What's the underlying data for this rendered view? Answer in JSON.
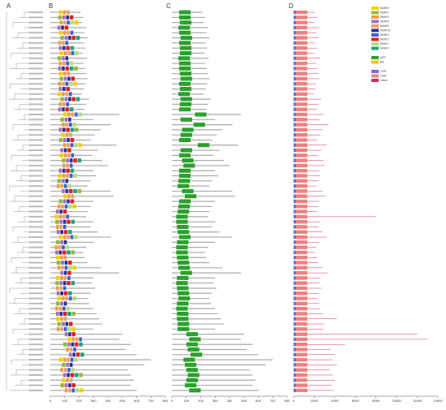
{
  "panel_labels": [
    "A",
    "B",
    "C",
    "D"
  ],
  "protein_lengths": [
    210,
    230,
    220,
    250,
    240,
    260,
    235,
    245,
    225,
    255,
    230,
    240,
    250,
    260,
    245,
    235,
    220,
    270,
    250,
    240,
    480,
    300,
    420,
    350,
    310,
    280,
    460,
    330,
    290,
    360,
    400,
    300,
    320,
    280,
    260,
    420,
    440,
    300,
    280,
    260,
    250,
    300,
    280,
    330,
    420,
    300,
    250,
    230,
    240,
    260,
    350,
    480,
    300,
    290,
    310,
    280,
    260,
    270,
    300,
    320,
    340,
    360,
    300,
    500,
    480,
    560,
    520,
    600,
    700,
    650,
    540,
    560,
    580,
    560,
    600
  ],
  "motif_panel": {
    "xlim": [
      0,
      800
    ],
    "xticks": [
      0,
      100,
      200,
      300,
      400,
      500,
      600,
      700,
      800
    ],
    "motif_start": [
      60,
      55,
      65,
      50,
      60,
      70,
      55,
      60,
      65,
      50,
      60,
      55,
      60,
      65,
      55,
      60,
      50,
      70,
      60,
      55,
      90,
      70,
      80,
      60,
      75,
      60,
      90,
      70,
      65,
      80,
      85,
      60,
      55,
      50,
      45,
      80,
      90,
      60,
      50,
      40,
      30,
      35,
      40,
      45,
      60,
      40,
      30,
      35,
      40,
      45,
      50,
      70,
      40,
      35,
      40,
      45,
      50,
      40,
      35,
      40,
      40,
      50,
      45,
      100,
      120,
      90,
      110,
      130,
      60,
      80,
      70,
      90,
      80,
      70,
      100
    ]
  },
  "domain_panel": {
    "xlim": [
      0,
      800
    ],
    "xticks": [
      0,
      100,
      200,
      300,
      400,
      500,
      600,
      700,
      800
    ],
    "domain_start": [
      50,
      50,
      55,
      45,
      50,
      60,
      50,
      55,
      55,
      45,
      50,
      50,
      55,
      60,
      50,
      55,
      45,
      60,
      55,
      50,
      160,
      60,
      150,
      70,
      60,
      50,
      180,
      60,
      50,
      70,
      80,
      50,
      50,
      45,
      40,
      70,
      90,
      50,
      45,
      40,
      30,
      30,
      35,
      40,
      50,
      35,
      30,
      30,
      35,
      40,
      45,
      60,
      35,
      30,
      35,
      40,
      45,
      35,
      30,
      35,
      35,
      40,
      40,
      100,
      120,
      100,
      110,
      130,
      80,
      90,
      100,
      110,
      100,
      90,
      120
    ]
  },
  "gene_panel": {
    "xlim": [
      0,
      14000
    ],
    "xticks": [
      0,
      2000,
      4000,
      6000,
      8000,
      10000,
      12000,
      14000
    ],
    "gene_lengths": [
      2100,
      2300,
      2000,
      2500,
      2200,
      2400,
      2100,
      2300,
      2000,
      2600,
      2200,
      2300,
      2400,
      2500,
      2200,
      2100,
      2000,
      2700,
      2400,
      2300,
      3000,
      2500,
      3400,
      2800,
      2600,
      2300,
      3200,
      2700,
      2400,
      2900,
      3000,
      2500,
      2600,
      2400,
      2200,
      2800,
      3100,
      2500,
      2400,
      2300,
      8000,
      2600,
      2400,
      2800,
      3200,
      2500,
      2200,
      2100,
      2300,
      2400,
      2800,
      3300,
      2600,
      2500,
      2700,
      2400,
      2300,
      2500,
      2600,
      2800,
      4200,
      3000,
      2900,
      12000,
      13000,
      5000,
      3600,
      4000,
      3800,
      4200,
      3500,
      3800,
      4000,
      3700,
      3900
    ]
  },
  "motif_legend": [
    {
      "name": "Motif 5",
      "color": "#f5d000",
      "width": 25
    },
    {
      "name": "Motif 1",
      "color": "#8fbc3f",
      "width": 25
    },
    {
      "name": "Motif 3",
      "color": "#f59b42",
      "width": 20
    },
    {
      "name": "Motif 8",
      "color": "#a070c0",
      "width": 20
    },
    {
      "name": "Motif 6",
      "color": "#e8a070",
      "width": 20
    },
    {
      "name": "Motif 10",
      "color": "#303090",
      "width": 20
    },
    {
      "name": "Motif 9",
      "color": "#4060d0",
      "width": 20
    },
    {
      "name": "Motif 2",
      "color": "#e02020",
      "width": 25
    },
    {
      "name": "Motif 7",
      "color": "#b0e080",
      "width": 25
    },
    {
      "name": "Motif 4",
      "color": "#20a080",
      "width": 25
    }
  ],
  "domain_legend": [
    {
      "name": "NTF",
      "color": "#2ca02c",
      "width": 80
    },
    {
      "name": "B3",
      "color": "#f5c518"
    }
  ],
  "structure_legend": [
    {
      "name": "UTR",
      "color": "#7070d0"
    },
    {
      "name": "CDS",
      "color": "#f08080"
    },
    {
      "name": "intron",
      "color": "#cc3355"
    }
  ]
}
